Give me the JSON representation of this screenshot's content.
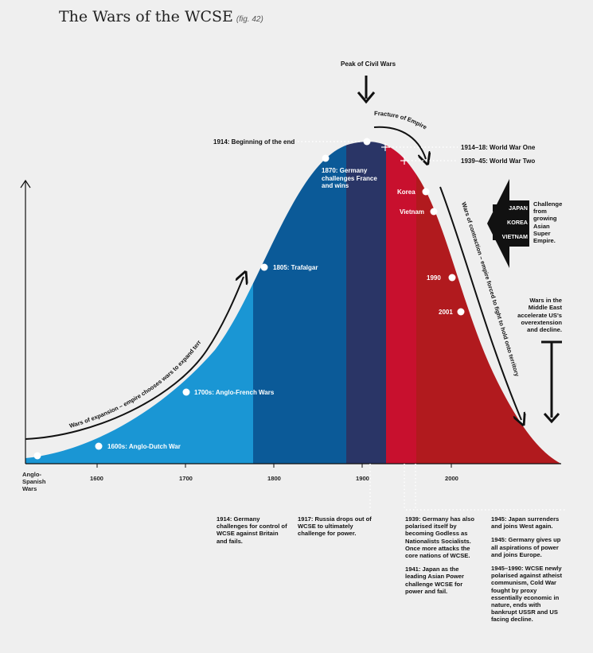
{
  "title": "The Wars of the WCSE",
  "fig": "(fig. 42)",
  "peak_label": "Peak of Civil Wars",
  "fracture_label": "Fracture of Empire",
  "expansion_label": "Wars of expansion – empire chooses wars to expand territory",
  "contraction_label": "Wars of contraction – empire forced to fight to hold onto territory",
  "ticks": [
    "Anglo-Spanish Wars",
    "1600",
    "1700",
    "1800",
    "1900",
    "2000"
  ],
  "events": {
    "e1600": "1600s: Anglo-Dutch War",
    "e1700": "1700s: Anglo-French Wars",
    "e1805": "1805: Trafalgar",
    "e1870": "1870: Germany challenges France and wins",
    "e1914": "1914: Beginning of the end",
    "ww1": "1914–18: World War One",
    "ww2": "1939–45: World War Two",
    "korea": "Korea",
    "vietnam": "Vietnam",
    "y1990": "1990",
    "y2001": "2001"
  },
  "challenge": {
    "regions": [
      "JAPAN",
      "KOREA",
      "VIETNAM"
    ],
    "text": "Challenge from growing Asian Super Empire."
  },
  "middle_east": "Wars in the Middle East accelerate US's overextension and decline.",
  "notes": {
    "n1914": "1914: Germany challenges for control of WCSE against Britain and fails.",
    "n1917": "1917: Russia drops out of WCSE to ultimately challenge for power.",
    "n1939": "1939: Germany has also polarised itself by becoming Godless as Nationalists Socialists. Once more attacks the core nations of WCSE.",
    "n1941": "1941: Japan as the leading Asian Power challenge WCSE for power and fail.",
    "n1945a": "1945: Japan surrenders and joins West again.",
    "n1945b": "1945: Germany gives up all aspirations of power and joins Europe.",
    "n1945c": "1945–1990: WCSE newly polarised against atheist communism, Cold War fought by proxy essentially economic in nature, ends with bankrupt USSR and US facing decline."
  },
  "colors": {
    "light_blue": "#1a96d4",
    "mid_blue": "#0b5a98",
    "dark_blue": "#1b4a86",
    "navy": "#2a3566",
    "crimson": "#c8102e",
    "red": "#b11a1e",
    "background": "#efefef"
  }
}
